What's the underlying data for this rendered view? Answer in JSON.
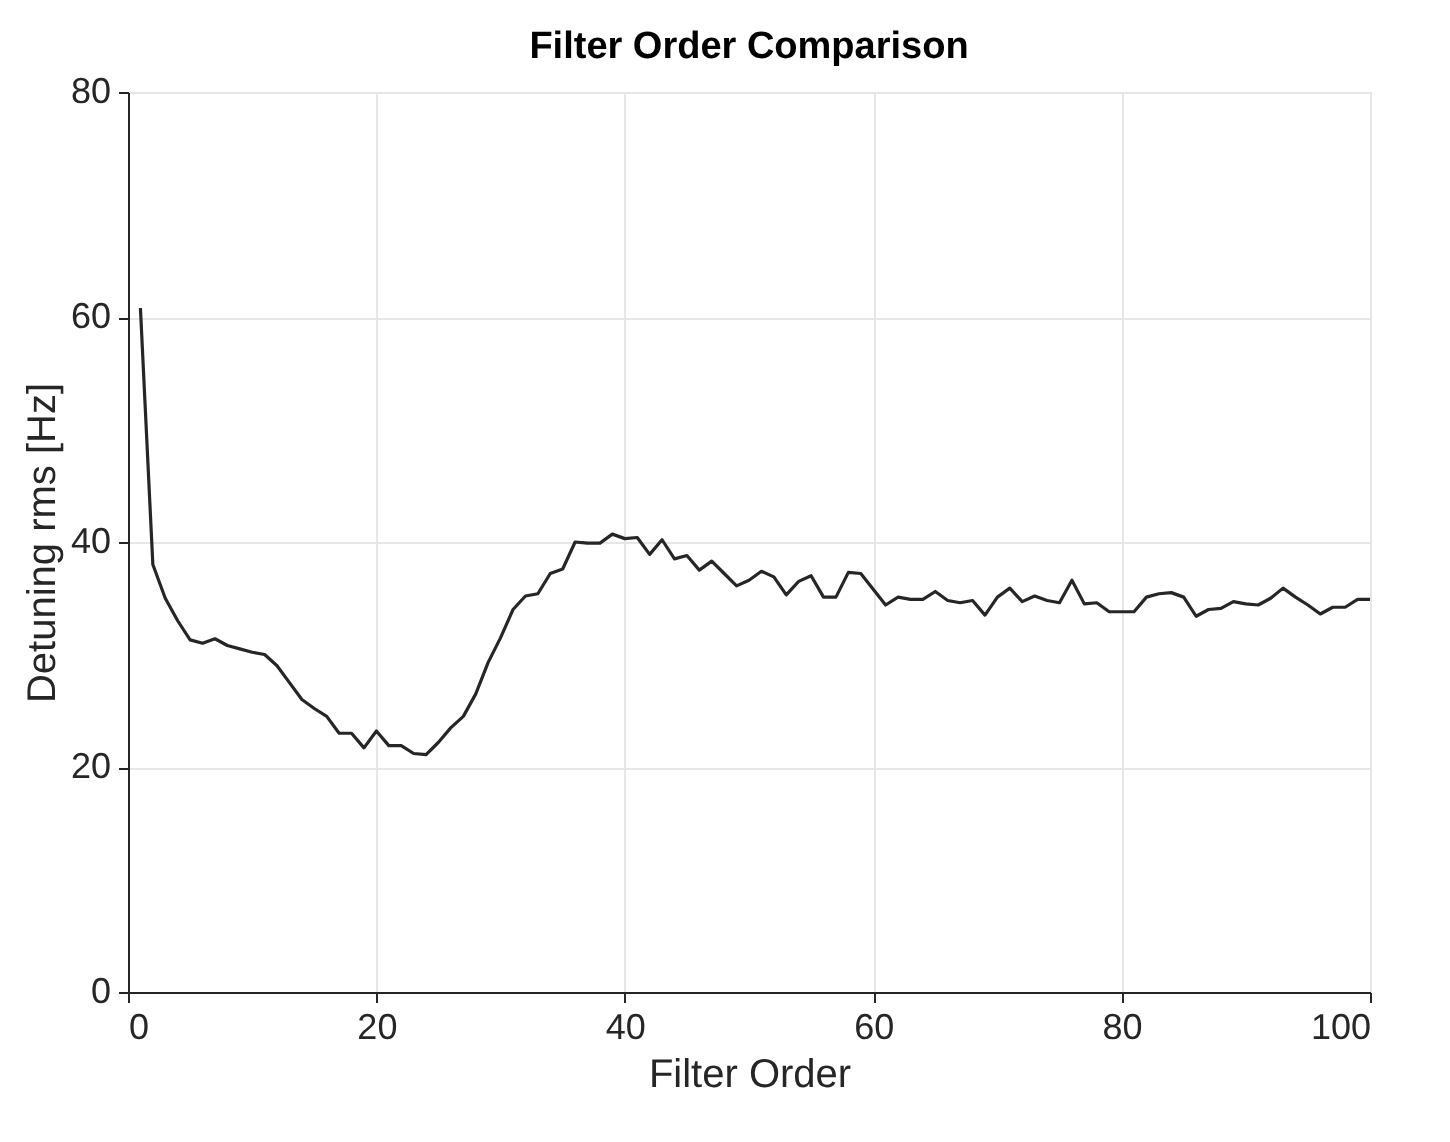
{
  "chart_data": {
    "type": "line",
    "title": "Filter Order Comparison",
    "xlabel": "Filter Order",
    "ylabel": "Detuning rms [Hz]",
    "x": [
      1,
      2,
      3,
      4,
      5,
      6,
      7,
      8,
      9,
      10,
      11,
      12,
      13,
      14,
      15,
      16,
      17,
      18,
      19,
      20,
      21,
      22,
      23,
      24,
      25,
      26,
      27,
      28,
      29,
      30,
      31,
      32,
      33,
      34,
      35,
      36,
      37,
      38,
      39,
      40,
      41,
      42,
      43,
      44,
      45,
      46,
      47,
      48,
      49,
      50,
      51,
      52,
      53,
      54,
      55,
      56,
      57,
      58,
      59,
      60,
      61,
      62,
      63,
      64,
      65,
      66,
      67,
      68,
      69,
      70,
      71,
      72,
      73,
      74,
      75,
      76,
      77,
      78,
      79,
      80,
      81,
      82,
      83,
      84,
      85,
      86,
      87,
      88,
      89,
      90,
      91,
      92,
      93,
      94,
      95,
      96,
      97,
      98,
      99,
      100
    ],
    "series": [
      {
        "color": "#262626",
        "values": [
          60.8,
          38,
          35,
          33,
          31.3,
          31,
          31.4,
          30.8,
          30.5,
          30.2,
          30,
          29,
          27.5,
          26,
          25.2,
          24.5,
          23,
          23,
          21.7,
          23.2,
          21.9,
          21.9,
          21.2,
          21.1,
          22.2,
          23.5,
          24.5,
          26.5,
          29.3,
          31.5,
          34,
          35.2,
          35.4,
          37.2,
          37.6,
          40,
          39.9,
          39.9,
          40.7,
          40.3,
          40.4,
          38.9,
          40.2,
          38.5,
          38.8,
          37.5,
          38.3,
          37.2,
          36.1,
          36.6,
          37.4,
          36.9,
          35.3,
          36.5,
          37,
          35.1,
          35.1,
          37.3,
          37.2,
          35.8,
          34.4,
          35.1,
          34.9,
          34.9,
          35.6,
          34.8,
          34.6,
          34.8,
          33.5,
          35.1,
          35.9,
          34.7,
          35.2,
          34.8,
          34.6,
          36.6,
          34.5,
          34.6,
          33.8,
          33.8,
          33.8,
          35.1,
          35.4,
          35.5,
          35.1,
          33.4,
          34,
          34.1,
          34.7,
          34.5,
          34.4,
          35,
          35.9,
          35.1,
          34.4,
          33.6,
          34.2,
          34.2,
          34.9,
          34.9
        ]
      }
    ],
    "xlim": [
      0,
      100
    ],
    "xticks": [
      0,
      20,
      40,
      60,
      80,
      100
    ],
    "ylim": [
      0,
      80
    ],
    "yticks": [
      0,
      20,
      40,
      60,
      80
    ],
    "grid": true,
    "marker": "none",
    "line_style": "solid"
  }
}
